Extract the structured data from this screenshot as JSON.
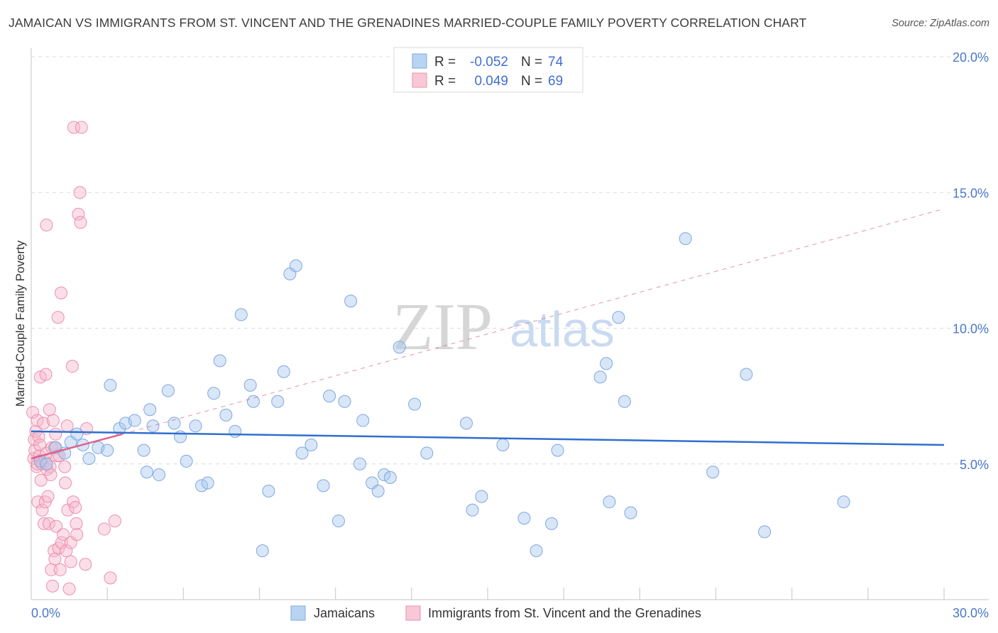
{
  "title": "JAMAICAN VS IMMIGRANTS FROM ST. VINCENT AND THE GRENADINES MARRIED-COUPLE FAMILY POVERTY CORRELATION CHART",
  "source": "Source: ZipAtlas.com",
  "watermark": {
    "zip": "ZIP",
    "atlas": "atlas"
  },
  "colors": {
    "blue_fill": "#a9c8f0",
    "blue_stroke": "#7ea8e0",
    "blue_line": "#2f6fcf",
    "pink_fill": "#f6b8cb",
    "pink_stroke": "#ec8fac",
    "pink_line": "#e0608a",
    "tick_text": "#4a78c8",
    "grid": "#dcdcdc"
  },
  "legend": {
    "rows": [
      {
        "r_label": "R =",
        "r_value": "-0.052",
        "n_label": "N =",
        "n_value": "74"
      },
      {
        "r_label": "R =",
        "r_value": "0.049",
        "n_label": "N =",
        "n_value": "69"
      }
    ]
  },
  "chart_data": {
    "type": "scatter",
    "xlabel": "",
    "ylabel": "Married-Couple Family Poverty",
    "xlim": [
      0,
      30
    ],
    "ylim": [
      0,
      20
    ],
    "x_tick_labels": [
      "0.0%",
      "30.0%"
    ],
    "y_ticks": [
      5,
      10,
      15,
      20
    ],
    "y_tick_labels": [
      "5.0%",
      "10.0%",
      "15.0%",
      "20.0%"
    ],
    "grid": true,
    "series": [
      {
        "name": "Jamaicans",
        "color": "blue",
        "R": -0.052,
        "N": 74,
        "trend": {
          "x0": 0,
          "y0": 6.2,
          "x1": 30,
          "y1": 5.7,
          "style": "solid"
        },
        "points": [
          [
            0.3,
            5.1
          ],
          [
            0.5,
            5.0
          ],
          [
            0.8,
            5.6
          ],
          [
            1.1,
            5.4
          ],
          [
            1.3,
            5.8
          ],
          [
            1.5,
            6.1
          ],
          [
            1.7,
            5.7
          ],
          [
            1.9,
            5.2
          ],
          [
            2.2,
            5.6
          ],
          [
            2.5,
            5.5
          ],
          [
            2.6,
            7.9
          ],
          [
            2.9,
            6.3
          ],
          [
            3.1,
            6.5
          ],
          [
            3.4,
            6.6
          ],
          [
            3.7,
            5.5
          ],
          [
            3.8,
            4.7
          ],
          [
            3.9,
            7.0
          ],
          [
            4.0,
            6.4
          ],
          [
            4.2,
            4.6
          ],
          [
            4.5,
            7.7
          ],
          [
            4.7,
            6.5
          ],
          [
            4.9,
            6.0
          ],
          [
            5.1,
            5.1
          ],
          [
            5.4,
            6.4
          ],
          [
            5.6,
            4.2
          ],
          [
            5.8,
            4.3
          ],
          [
            6.0,
            7.6
          ],
          [
            6.2,
            8.8
          ],
          [
            6.4,
            6.8
          ],
          [
            6.7,
            6.2
          ],
          [
            6.9,
            10.5
          ],
          [
            7.2,
            7.9
          ],
          [
            7.3,
            7.3
          ],
          [
            7.6,
            1.8
          ],
          [
            7.8,
            4.0
          ],
          [
            8.1,
            7.3
          ],
          [
            8.3,
            8.4
          ],
          [
            8.5,
            12.0
          ],
          [
            8.7,
            12.3
          ],
          [
            8.9,
            5.4
          ],
          [
            9.2,
            5.7
          ],
          [
            9.6,
            4.2
          ],
          [
            9.8,
            7.5
          ],
          [
            10.1,
            2.9
          ],
          [
            10.3,
            7.3
          ],
          [
            10.5,
            11.0
          ],
          [
            10.8,
            5.0
          ],
          [
            10.9,
            6.6
          ],
          [
            11.2,
            4.3
          ],
          [
            11.4,
            4.0
          ],
          [
            11.6,
            4.6
          ],
          [
            11.8,
            4.5
          ],
          [
            12.1,
            9.3
          ],
          [
            12.6,
            7.2
          ],
          [
            13.0,
            5.4
          ],
          [
            14.3,
            6.5
          ],
          [
            14.5,
            3.3
          ],
          [
            14.8,
            3.8
          ],
          [
            15.5,
            5.7
          ],
          [
            16.2,
            3.0
          ],
          [
            16.6,
            1.8
          ],
          [
            17.1,
            2.8
          ],
          [
            17.3,
            5.5
          ],
          [
            18.7,
            8.2
          ],
          [
            18.9,
            8.7
          ],
          [
            19.0,
            3.6
          ],
          [
            19.3,
            10.4
          ],
          [
            19.5,
            7.3
          ],
          [
            19.7,
            3.2
          ],
          [
            21.5,
            13.3
          ],
          [
            22.4,
            4.7
          ],
          [
            23.5,
            8.3
          ],
          [
            24.1,
            2.5
          ],
          [
            26.7,
            3.6
          ]
        ]
      },
      {
        "name": "Immigrants from St. Vincent and the Grenadines",
        "color": "pink",
        "R": 0.049,
        "N": 69,
        "trend_solid": {
          "x0": 0,
          "y0": 5.2,
          "x1": 3.0,
          "y1": 6.1
        },
        "trend_dashed": {
          "x0": 3.0,
          "y0": 6.1,
          "x1": 30,
          "y1": 14.4
        },
        "points": [
          [
            0.05,
            6.9
          ],
          [
            0.08,
            5.2
          ],
          [
            0.1,
            5.9
          ],
          [
            0.12,
            5.5
          ],
          [
            0.15,
            6.2
          ],
          [
            0.18,
            4.9
          ],
          [
            0.2,
            6.6
          ],
          [
            0.2,
            5.0
          ],
          [
            0.22,
            3.6
          ],
          [
            0.25,
            6.0
          ],
          [
            0.27,
            5.3
          ],
          [
            0.28,
            5.7
          ],
          [
            0.3,
            8.2
          ],
          [
            0.32,
            4.4
          ],
          [
            0.35,
            5.0
          ],
          [
            0.36,
            3.3
          ],
          [
            0.4,
            6.5
          ],
          [
            0.42,
            2.8
          ],
          [
            0.45,
            5.1
          ],
          [
            0.46,
            3.6
          ],
          [
            0.48,
            8.3
          ],
          [
            0.5,
            13.8
          ],
          [
            0.5,
            5.4
          ],
          [
            0.52,
            4.8
          ],
          [
            0.55,
            3.8
          ],
          [
            0.58,
            2.8
          ],
          [
            0.6,
            7.0
          ],
          [
            0.62,
            4.9
          ],
          [
            0.64,
            4.6
          ],
          [
            0.66,
            1.1
          ],
          [
            0.68,
            5.6
          ],
          [
            0.7,
            0.5
          ],
          [
            0.72,
            6.6
          ],
          [
            0.75,
            1.8
          ],
          [
            0.77,
            5.6
          ],
          [
            0.78,
            1.5
          ],
          [
            0.8,
            6.1
          ],
          [
            0.82,
            2.7
          ],
          [
            0.85,
            5.3
          ],
          [
            0.88,
            10.4
          ],
          [
            0.9,
            1.9
          ],
          [
            0.92,
            5.3
          ],
          [
            0.95,
            1.1
          ],
          [
            0.98,
            11.3
          ],
          [
            1.0,
            2.1
          ],
          [
            1.05,
            2.4
          ],
          [
            1.1,
            4.9
          ],
          [
            1.12,
            4.3
          ],
          [
            1.15,
            1.8
          ],
          [
            1.18,
            6.4
          ],
          [
            1.2,
            3.3
          ],
          [
            1.25,
            0.4
          ],
          [
            1.3,
            2.1
          ],
          [
            1.3,
            1.4
          ],
          [
            1.35,
            8.6
          ],
          [
            1.38,
            3.6
          ],
          [
            1.4,
            17.4
          ],
          [
            1.45,
            3.4
          ],
          [
            1.48,
            2.8
          ],
          [
            1.5,
            2.4
          ],
          [
            1.55,
            14.2
          ],
          [
            1.6,
            15.0
          ],
          [
            1.62,
            13.9
          ],
          [
            1.65,
            17.4
          ],
          [
            1.78,
            1.3
          ],
          [
            1.82,
            6.3
          ],
          [
            2.4,
            2.6
          ],
          [
            2.6,
            0.8
          ],
          [
            2.75,
            2.9
          ]
        ]
      }
    ]
  },
  "bottom_legend": [
    {
      "label": "Jamaicans"
    },
    {
      "label": "Immigrants from St. Vincent and the Grenadines"
    }
  ]
}
